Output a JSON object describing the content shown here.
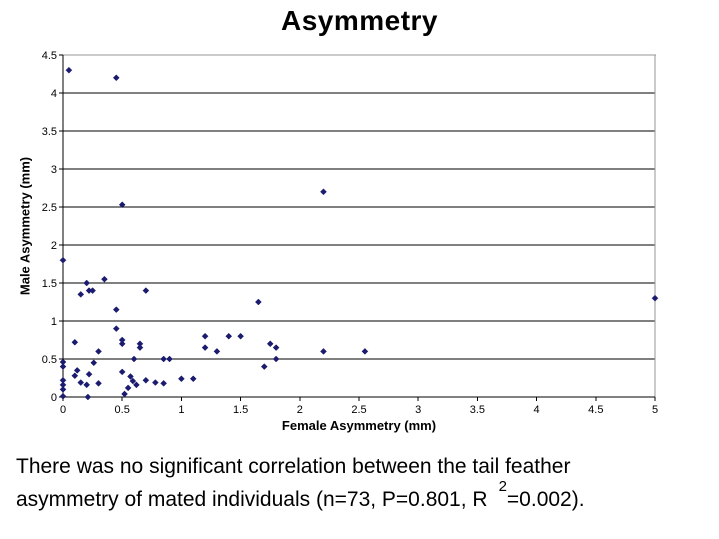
{
  "caption": {
    "line1": "There was no significant correlation between the tail feather",
    "line2_prefix": "asymmetry of mated individuals (n=73, P=0.801, R",
    "line2_superscript": "2",
    "line2_suffix": "=0.002)."
  },
  "chart_data": {
    "type": "scatter",
    "title": "Asymmetry",
    "xlabel": "Female Asymmetry (mm)",
    "ylabel": "Male Asymmetry (mm)",
    "xlim": [
      0,
      5
    ],
    "ylim": [
      0,
      4.5
    ],
    "grid": true,
    "legend": "none",
    "xticks": [
      {
        "v": 0,
        "label": "0"
      },
      {
        "v": 0.5,
        "label": "0.5"
      },
      {
        "v": 1,
        "label": "1"
      },
      {
        "v": 1.5,
        "label": "1.5"
      },
      {
        "v": 2,
        "label": "2"
      },
      {
        "v": 2.5,
        "label": "2.5"
      },
      {
        "v": 3,
        "label": "3"
      },
      {
        "v": 3.5,
        "label": "3.5"
      },
      {
        "v": 4,
        "label": "4"
      },
      {
        "v": 4.5,
        "label": "4.5"
      },
      {
        "v": 5,
        "label": "5"
      }
    ],
    "yticks": [
      {
        "v": 4.5,
        "label": "4.5"
      },
      {
        "v": 4,
        "label": "4"
      },
      {
        "v": 3.5,
        "label": "3.5"
      },
      {
        "v": 3,
        "label": "3"
      },
      {
        "v": 2.5,
        "label": "2.5"
      },
      {
        "v": 2,
        "label": "2"
      },
      {
        "v": 1.5,
        "label": "1.5"
      },
      {
        "v": 1,
        "label": "1"
      },
      {
        "v": 0.5,
        "label": "0.5"
      },
      {
        "v": 0,
        "label": "0"
      }
    ],
    "marker": {
      "shape": "diamond",
      "color": "#1b1b6f",
      "size": 6
    },
    "colors": {
      "gridline": "#000000",
      "axis": "#000000",
      "plot_border": "#969696",
      "background": "#ffffff"
    },
    "points": [
      [
        0.05,
        4.3
      ],
      [
        0.45,
        4.2
      ],
      [
        0.5,
        2.53
      ],
      [
        2.2,
        2.7
      ],
      [
        0,
        1.8
      ],
      [
        0.35,
        1.55
      ],
      [
        0.2,
        1.5
      ],
      [
        0.22,
        1.4
      ],
      [
        0.25,
        1.4
      ],
      [
        0.15,
        1.35
      ],
      [
        0.7,
        1.4
      ],
      [
        0.45,
        1.15
      ],
      [
        1.65,
        1.25
      ],
      [
        5,
        1.3
      ],
      [
        0.45,
        0.9
      ],
      [
        0.1,
        0.72
      ],
      [
        0.5,
        0.75
      ],
      [
        0.5,
        0.7
      ],
      [
        0.65,
        0.7
      ],
      [
        0.65,
        0.65
      ],
      [
        1.2,
        0.8
      ],
      [
        1.4,
        0.8
      ],
      [
        1.5,
        0.8
      ],
      [
        1.2,
        0.65
      ],
      [
        1.3,
        0.6
      ],
      [
        1.75,
        0.7
      ],
      [
        1.8,
        0.65
      ],
      [
        1.8,
        0.5
      ],
      [
        2.2,
        0.6
      ],
      [
        2.55,
        0.6
      ],
      [
        0.3,
        0.6
      ],
      [
        0.6,
        0.5
      ],
      [
        0.85,
        0.5
      ],
      [
        0.9,
        0.5
      ],
      [
        1.7,
        0.4
      ],
      [
        0.26,
        0.45
      ],
      [
        0,
        0.46
      ],
      [
        0,
        0.4
      ],
      [
        0.12,
        0.35
      ],
      [
        0.22,
        0.3
      ],
      [
        0.1,
        0.28
      ],
      [
        0.15,
        0.19
      ],
      [
        0.2,
        0.16
      ],
      [
        0.3,
        0.18
      ],
      [
        0.5,
        0.33
      ],
      [
        0.57,
        0.27
      ],
      [
        0.59,
        0.21
      ],
      [
        0.62,
        0.16
      ],
      [
        0.55,
        0.12
      ],
      [
        0.52,
        0.04
      ],
      [
        0.7,
        0.22
      ],
      [
        0.78,
        0.19
      ],
      [
        0.85,
        0.18
      ],
      [
        1.0,
        0.24
      ],
      [
        1.1,
        0.24
      ],
      [
        0,
        0.22
      ],
      [
        0,
        0.16
      ],
      [
        0,
        0.1
      ],
      [
        0,
        0.01
      ],
      [
        0.21,
        0
      ]
    ]
  }
}
